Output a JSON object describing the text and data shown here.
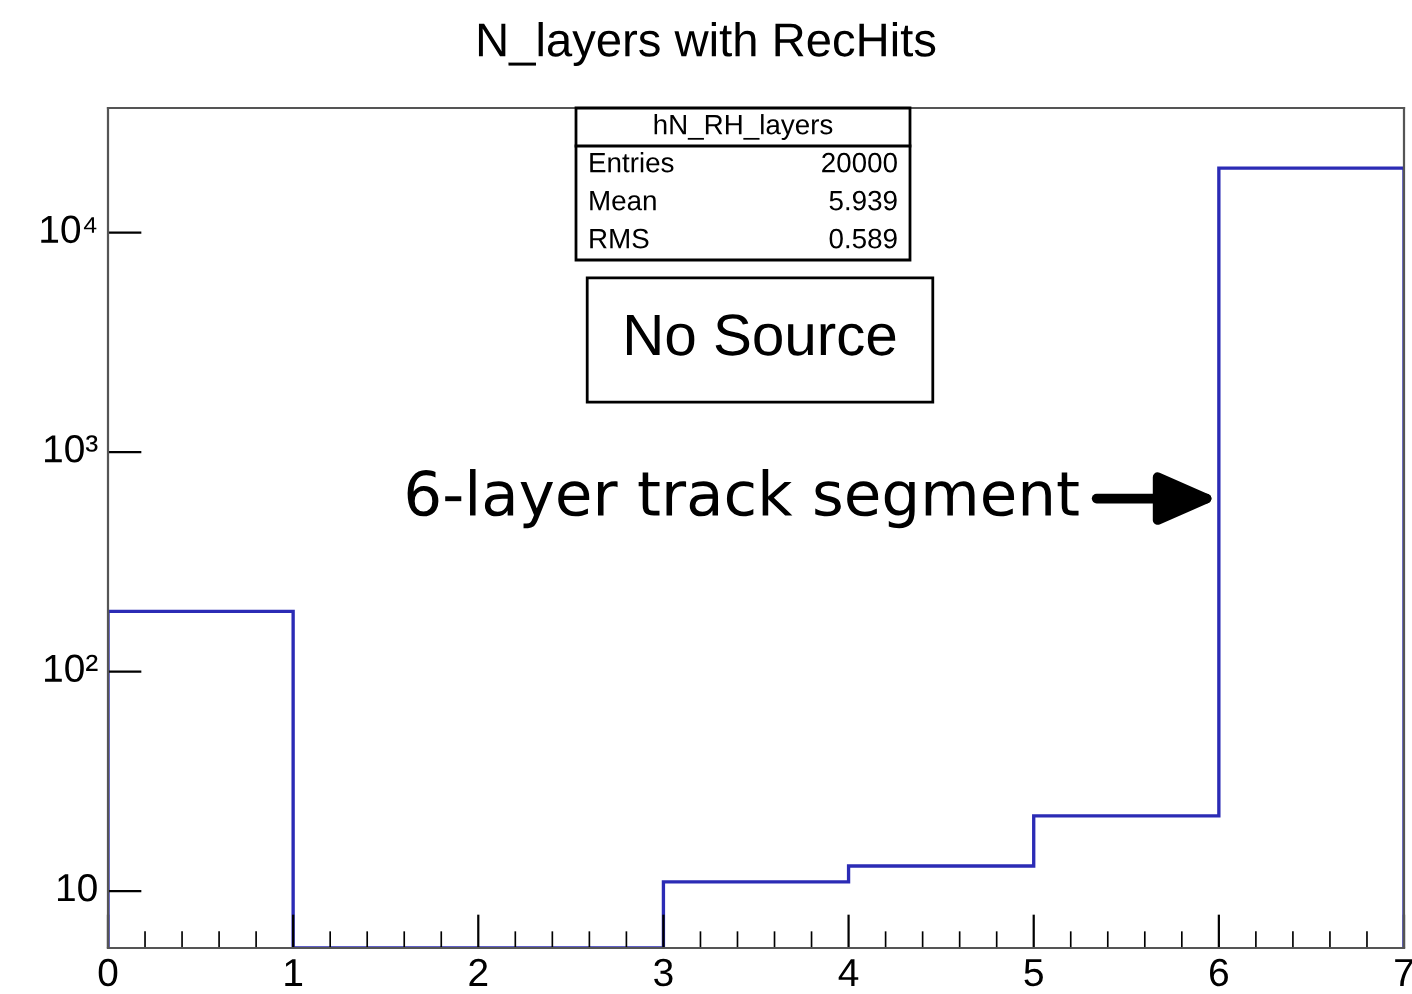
{
  "chart_data": {
    "type": "histogram",
    "title": "N_layers with RecHits",
    "bins": [
      0,
      1,
      2,
      3,
      4,
      5,
      6,
      7
    ],
    "values": [
      188,
      null,
      null,
      11,
      13,
      22,
      19700
    ],
    "color": "#2b2bb5",
    "log": "y",
    "xlim": [
      0,
      7
    ],
    "xticks": [
      0,
      1,
      2,
      3,
      4,
      5,
      6,
      7
    ],
    "ylim": [
      5.5,
      37000
    ],
    "yticks": [
      {
        "value": 10,
        "label": "10"
      },
      {
        "value": 100,
        "label": "10²"
      },
      {
        "value": 1000,
        "label": "10³"
      },
      {
        "value": 10000,
        "label": "10⁴"
      }
    ],
    "grid": false,
    "legend": false,
    "annotations": [
      "hN_RH_layers",
      "Entries 20000",
      "Mean 5.939",
      "RMS 0.589",
      "No Source",
      "6-layer track segment"
    ]
  }
}
